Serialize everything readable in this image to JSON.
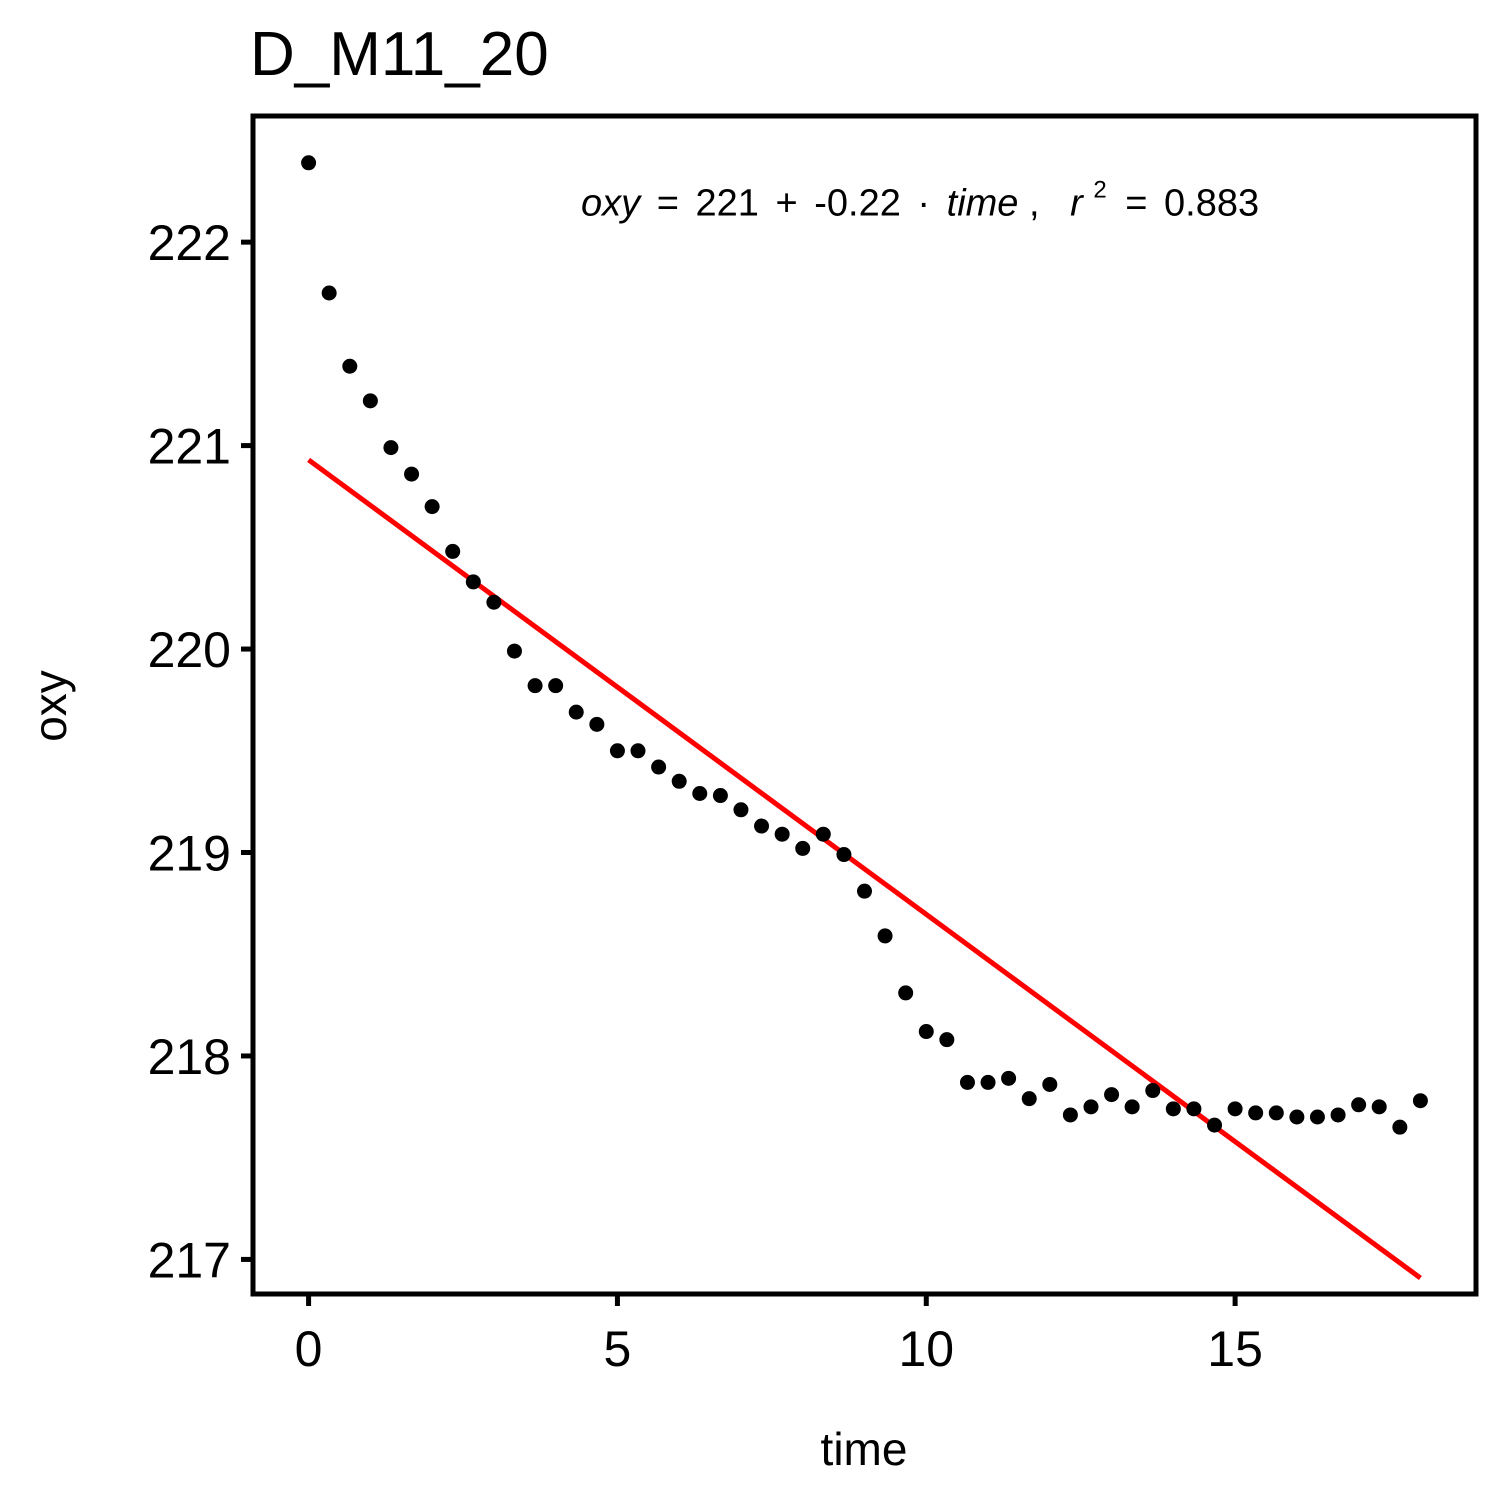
{
  "chart_data": {
    "type": "scatter",
    "title": "D_M11_20",
    "xlabel": "time",
    "ylabel": "oxy",
    "xlim": [
      -0.9,
      18.9
    ],
    "ylim": [
      216.83,
      222.62
    ],
    "x_ticks": [
      0,
      5,
      10,
      15
    ],
    "x_tick_labels": [
      "0",
      "5",
      "10",
      "15"
    ],
    "y_ticks": [
      217,
      218,
      219,
      220,
      221,
      222
    ],
    "y_tick_labels": [
      "217",
      "218",
      "219",
      "220",
      "221",
      "222"
    ],
    "grid": false,
    "colors": {
      "points": "#000000",
      "fit_line": "#ff0000",
      "frame": "#000000"
    },
    "annotation": {
      "lhs": "oxy",
      "eq_sign": "=",
      "intercept": "221",
      "plus": "+",
      "slope": "-0.22",
      "dot": "·",
      "var": "time",
      "comma": ",",
      "r": "r",
      "sup": "2",
      "r2_eq": "=",
      "r2": "0.883",
      "position_data": [
        9.9,
        222.13
      ]
    },
    "fit": {
      "intercept": 220.93,
      "slope": -0.2234,
      "x_range": [
        0,
        18
      ]
    },
    "x": [
      0,
      0.333,
      0.667,
      1,
      1.333,
      1.667,
      2,
      2.333,
      2.667,
      3,
      3.333,
      3.667,
      4,
      4.333,
      4.667,
      5,
      5.333,
      5.667,
      6,
      6.333,
      6.667,
      7,
      7.333,
      7.667,
      8,
      8.333,
      8.667,
      9,
      9.333,
      9.667,
      10,
      10.333,
      10.667,
      11,
      11.333,
      11.667,
      12,
      12.333,
      12.667,
      13,
      13.333,
      13.667,
      14,
      14.333,
      14.667,
      15,
      15.333,
      15.667,
      16,
      16.333,
      16.667,
      17,
      17.333,
      17.667,
      18
    ],
    "y": [
      222.39,
      221.75,
      221.39,
      221.22,
      220.99,
      220.86,
      220.7,
      220.48,
      220.33,
      220.23,
      219.99,
      219.82,
      219.82,
      219.69,
      219.63,
      219.5,
      219.5,
      219.42,
      219.35,
      219.29,
      219.28,
      219.21,
      219.13,
      219.09,
      219.02,
      219.09,
      218.99,
      218.81,
      218.59,
      218.31,
      218.12,
      218.08,
      217.87,
      217.87,
      217.89,
      217.79,
      217.86,
      217.71,
      217.75,
      217.81,
      217.75,
      217.83,
      217.74,
      217.74,
      217.66,
      217.74,
      217.72,
      217.72,
      217.7,
      217.7,
      217.71,
      217.76,
      217.75,
      217.65,
      217.78
    ]
  }
}
